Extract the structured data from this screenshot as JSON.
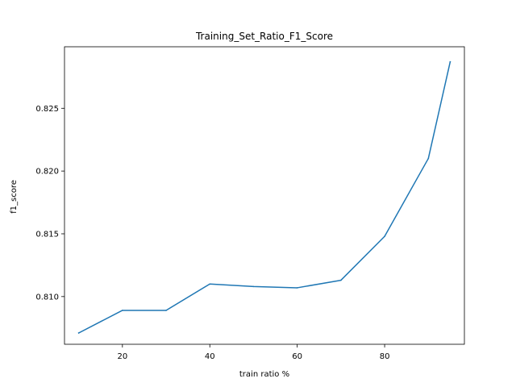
{
  "chart_data": {
    "type": "line",
    "title": "Training_Set_Ratio_F1_Score",
    "xlabel": "train ratio %",
    "ylabel": "f1_score",
    "xlim": [
      6.75,
      98.25
    ],
    "ylim": [
      0.8062,
      0.8299
    ],
    "xticks": [
      20,
      40,
      60,
      80
    ],
    "xtick_labels": [
      "20",
      "40",
      "60",
      "80"
    ],
    "yticks": [
      0.81,
      0.815,
      0.82,
      0.825
    ],
    "ytick_labels": [
      "0.810",
      "0.815",
      "0.820",
      "0.825"
    ],
    "grid": false,
    "series": [
      {
        "color": "#1f77b4",
        "x": [
          10,
          20,
          30,
          40,
          50,
          60,
          70,
          80,
          90,
          95
        ],
        "y": [
          0.8071,
          0.8089,
          0.8089,
          0.811,
          0.8108,
          0.8107,
          0.8113,
          0.8148,
          0.821,
          0.8287
        ]
      }
    ]
  }
}
